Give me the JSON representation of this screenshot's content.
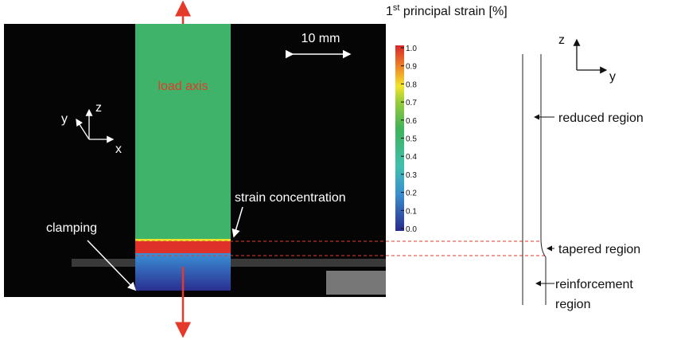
{
  "photo": {
    "scale_bar": "10 mm",
    "load_axis": "load axis",
    "strain_concentration": "strain concentration",
    "clamping": "clamping",
    "axes": {
      "y": "y",
      "z": "z",
      "x": "x"
    }
  },
  "colorbar": {
    "title_base": "1",
    "title_sup": "st",
    "title_rest": " principal strain [%]",
    "lim": [
      0,
      1
    ],
    "ticks": [
      {
        "value": 1,
        "label": "1.0"
      },
      0.9,
      0.8,
      0.7,
      0.6,
      0.5,
      0.4,
      0.3,
      0.2,
      0.1,
      {
        "value": 0,
        "label": "0.0"
      }
    ]
  },
  "diagram": {
    "axes": {
      "z": "z",
      "y": "y"
    },
    "reduced_region": "reduced region",
    "tapered_region": "tapered region",
    "reinforcement_region": [
      "reinforcement",
      "region"
    ]
  }
}
